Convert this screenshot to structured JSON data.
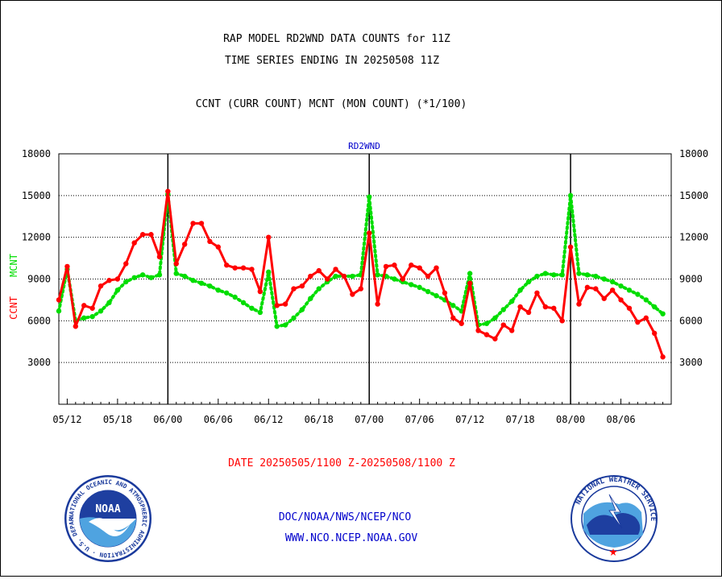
{
  "header": {
    "line1": "RAP MODEL RD2WND DATA COUNTS for 11Z",
    "line2": "TIME SERIES ENDING IN 20250508 11Z",
    "line3": "CCNT (CURR COUNT) MCNT (MON COUNT) (*1/100)"
  },
  "footer": {
    "date_range": "DATE 20250505/1100 Z-20250508/1100 Z",
    "org_path": "DOC/NOAA/NWS/NCEP/NCO",
    "website": "WWW.NCO.NCEP.NOAA.GOV"
  },
  "logos": {
    "left": {
      "text": "NOAA",
      "ring_text": "NATIONAL OCEANIC AND ATMOSPHERIC ADMINISTRATION · U.S. DEPARTMENT OF COMMERCE"
    },
    "right": {
      "ring_text": "NATIONAL WEATHER SERVICE"
    }
  },
  "colors": {
    "ccnt": "#ff0000",
    "mcnt": "#00dd00",
    "title_blue": "#0000cc",
    "footer_red": "#ff0000",
    "footer_blue": "#0000cc"
  },
  "chart_data": {
    "type": "line",
    "title": "RD2WND",
    "ylabel_left": [
      {
        "text": "CCNT",
        "color": "#ff0000"
      },
      {
        "text": "MCNT",
        "color": "#00dd00"
      }
    ],
    "ylim": [
      0,
      18000
    ],
    "yticks": [
      3000,
      6000,
      9000,
      12000,
      15000,
      18000
    ],
    "yticks_right": [
      3000,
      6000,
      9000,
      12000,
      15000,
      18000
    ],
    "xlim": [
      0,
      72
    ],
    "xticks": [
      {
        "x": 0,
        "label": "05/12"
      },
      {
        "x": 6,
        "label": "05/18"
      },
      {
        "x": 12,
        "label": "06/00"
      },
      {
        "x": 18,
        "label": "06/06"
      },
      {
        "x": 24,
        "label": "06/12"
      },
      {
        "x": 30,
        "label": "06/18"
      },
      {
        "x": 36,
        "label": "07/00"
      },
      {
        "x": 42,
        "label": "07/06"
      },
      {
        "x": 48,
        "label": "07/12"
      },
      {
        "x": 54,
        "label": "07/18"
      },
      {
        "x": 60,
        "label": "08/00"
      },
      {
        "x": 66,
        "label": "08/06"
      }
    ],
    "day_dividers": [
      12,
      36,
      60
    ],
    "grid": "horizontal dotted",
    "series": [
      {
        "name": "CCNT",
        "color": "#ff0000",
        "style": "solid",
        "x": [
          -1,
          0,
          1,
          2,
          3,
          4,
          5,
          6,
          7,
          8,
          9,
          10,
          11,
          12,
          13,
          14,
          15,
          16,
          17,
          18,
          19,
          20,
          21,
          22,
          23,
          24,
          25,
          26,
          27,
          28,
          29,
          30,
          31,
          32,
          33,
          34,
          35,
          36,
          37,
          38,
          39,
          40,
          41,
          42,
          43,
          44,
          45,
          46,
          47,
          48,
          49,
          50,
          51,
          52,
          53,
          54,
          55,
          56,
          57,
          58,
          59,
          60,
          61,
          62,
          63,
          64,
          65,
          66,
          67,
          68,
          69,
          70,
          71
        ],
        "values": [
          7500,
          9900,
          5600,
          7100,
          6900,
          8500,
          8900,
          9000,
          10100,
          11600,
          12200,
          12200,
          10600,
          15300,
          10100,
          11500,
          13000,
          13000,
          11700,
          11300,
          10000,
          9800,
          9800,
          9700,
          8100,
          12000,
          7100,
          7200,
          8300,
          8500,
          9200,
          9600,
          9000,
          9700,
          9200,
          7900,
          8300,
          12300,
          7200,
          9900,
          10000,
          9000,
          10000,
          9800,
          9200,
          9800,
          8000,
          6200,
          5800,
          8700,
          5300,
          5000,
          4700,
          5700,
          5300,
          7000,
          6600,
          8000,
          7000,
          6900,
          6000,
          11300,
          7200,
          8400,
          8300,
          7600,
          8200,
          7500,
          6900,
          5900,
          6200,
          5100,
          3400
        ]
      },
      {
        "name": "MCNT",
        "color": "#00dd00",
        "style": "dotted",
        "x": [
          -1,
          0,
          1,
          2,
          3,
          4,
          5,
          6,
          7,
          8,
          9,
          10,
          11,
          12,
          13,
          14,
          15,
          16,
          17,
          18,
          19,
          20,
          21,
          22,
          23,
          24,
          25,
          26,
          27,
          28,
          29,
          30,
          31,
          32,
          33,
          34,
          35,
          36,
          37,
          38,
          39,
          40,
          41,
          42,
          43,
          44,
          45,
          46,
          47,
          48,
          49,
          50,
          51,
          52,
          53,
          54,
          55,
          56,
          57,
          58,
          59,
          60,
          61,
          62,
          63,
          64,
          65,
          66,
          67,
          68,
          69,
          70,
          71
        ],
        "values": [
          6700,
          9700,
          6000,
          6200,
          6300,
          6700,
          7300,
          8200,
          8800,
          9100,
          9300,
          9100,
          9300,
          15100,
          9400,
          9200,
          8900,
          8700,
          8500,
          8200,
          8000,
          7700,
          7300,
          6900,
          6600,
          9500,
          5600,
          5700,
          6200,
          6800,
          7600,
          8300,
          8800,
          9200,
          9200,
          9200,
          9300,
          14900,
          9300,
          9200,
          9000,
          8800,
          8600,
          8400,
          8100,
          7800,
          7500,
          7100,
          6700,
          9400,
          5700,
          5800,
          6200,
          6800,
          7400,
          8200,
          8800,
          9200,
          9400,
          9300,
          9300,
          15000,
          9400,
          9300,
          9200,
          9000,
          8800,
          8500,
          8200,
          7900,
          7500,
          7000,
          6500
        ]
      }
    ]
  }
}
